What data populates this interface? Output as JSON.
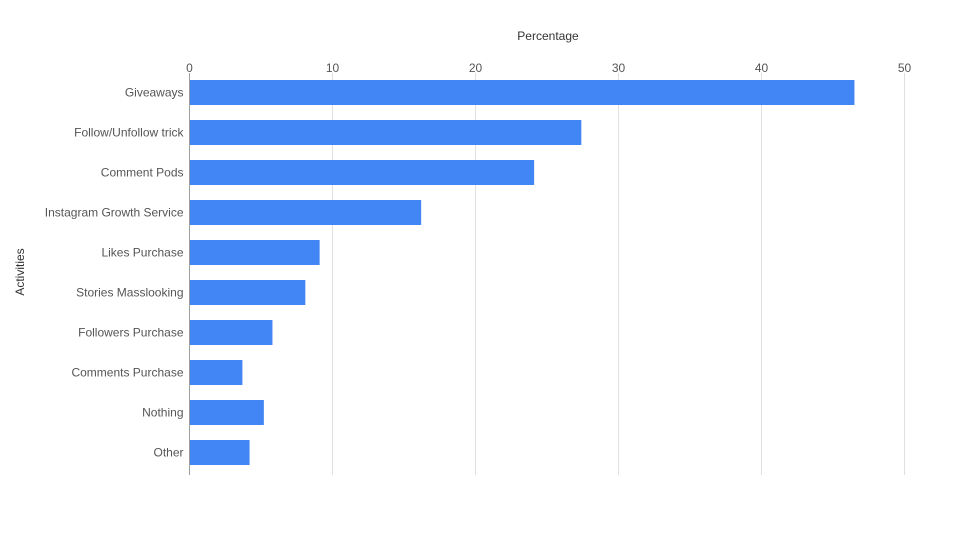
{
  "chart_data": {
    "type": "bar",
    "orientation": "horizontal",
    "title": "",
    "xlabel": "Percentage",
    "ylabel": "Activities",
    "xlim": [
      0,
      50
    ],
    "x_ticks": [
      0,
      10,
      20,
      30,
      40,
      50
    ],
    "x_axis_position": "top",
    "grid": true,
    "legend": "none",
    "categories": [
      "Giveaways",
      "Follow/Unfollow trick",
      "Comment Pods",
      "Instagram Growth Service",
      "Likes Purchase",
      "Stories Masslooking",
      "Followers Purchase",
      "Comments Purchase",
      "Nothing",
      "Other"
    ],
    "values": [
      46.5,
      27.4,
      24.1,
      16.2,
      9.1,
      8.1,
      5.8,
      3.7,
      5.2,
      4.2
    ],
    "bar_color": "#4285f4"
  }
}
